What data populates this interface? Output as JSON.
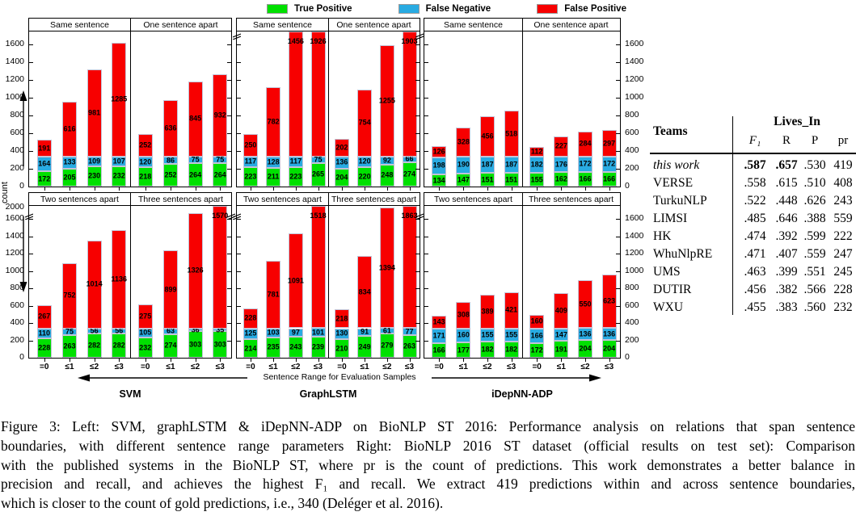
{
  "legend": {
    "items": [
      {
        "name": "true-positive",
        "label": "True Positive",
        "color": "#00e000"
      },
      {
        "name": "false-negative",
        "label": "False Negative",
        "color": "#29abe2"
      },
      {
        "name": "false-positive",
        "label": "False Positive",
        "color": "#f70000"
      }
    ]
  },
  "chart_data": {
    "type": "bar",
    "stacked": true,
    "xlabel": "Sentence Range for Evaluation Samples",
    "ylabel": "count",
    "categories": [
      "=0",
      "≤1",
      "≤2",
      "≤3"
    ],
    "series_names": [
      "True Positive",
      "False Negative",
      "False Positive"
    ],
    "colors": {
      "tp": "#00e000",
      "fn": "#29abe2",
      "fp": "#f70000"
    },
    "ylim": [
      0,
      1600
    ],
    "y_ticks": [
      0,
      200,
      400,
      600,
      800,
      1000,
      1200,
      1400,
      1600
    ],
    "y_axis_break_top_label": "2000",
    "grid": false,
    "legend_position": "top",
    "groups": [
      {
        "name": "SVM",
        "panels": [
          {
            "title": "Same sentence",
            "tp": [
              172,
              205,
              230,
              232
            ],
            "fn": [
              164,
              133,
              109,
              107
            ],
            "fp": [
              191,
              616,
              981,
              1285
            ]
          },
          {
            "title": "One sentence apart",
            "tp": [
              218,
              252,
              264,
              264
            ],
            "fn": [
              120,
              86,
              75,
              75
            ],
            "fp": [
              252,
              636,
              845,
              932
            ]
          },
          {
            "title": "Two sentences apart",
            "tp": [
              228,
              263,
              282,
              282
            ],
            "fn": [
              110,
              75,
              56,
              56
            ],
            "fp": [
              267,
              752,
              1014,
              1136
            ]
          },
          {
            "title": "Three sentences apart",
            "tp": [
              232,
              274,
              303,
              303
            ],
            "fn": [
              105,
              63,
              36,
              35
            ],
            "fp": [
              275,
              899,
              1326,
              1570
            ]
          }
        ]
      },
      {
        "name": "GraphLSTM",
        "panels": [
          {
            "title": "Same sentence",
            "tp": [
              223,
              211,
              223,
              265
            ],
            "fn": [
              117,
              128,
              117,
              75
            ],
            "fp": [
              250,
              782,
              1456,
              1926
            ]
          },
          {
            "title": "One sentence apart",
            "tp": [
              204,
              220,
              248,
              274
            ],
            "fn": [
              136,
              120,
              92,
              66
            ],
            "fp": [
              202,
              754,
              1255,
              1903
            ]
          },
          {
            "title": "Two sentences apart",
            "tp": [
              214,
              235,
              243,
              239
            ],
            "fn": [
              125,
              103,
              97,
              101
            ],
            "fp": [
              228,
              781,
              1091,
              1518
            ]
          },
          {
            "title": "Three sentences apart",
            "tp": [
              210,
              249,
              279,
              263
            ],
            "fn": [
              130,
              91,
              61,
              77
            ],
            "fp": [
              218,
              834,
              1394,
              1863
            ]
          }
        ]
      },
      {
        "name": "iDepNN-ADP",
        "panels": [
          {
            "title": "Same sentence",
            "tp": [
              134,
              147,
              151,
              151
            ],
            "fn": [
              198,
              190,
              187,
              187
            ],
            "fp": [
              126,
              328,
              456,
              518
            ]
          },
          {
            "title": "One sentence apart",
            "tp": [
              155,
              162,
              166,
              166
            ],
            "fn": [
              182,
              176,
              172,
              172
            ],
            "fp": [
              112,
              227,
              284,
              297
            ]
          },
          {
            "title": "Two sentences apart",
            "tp": [
              166,
              177,
              182,
              182
            ],
            "fn": [
              171,
              160,
              155,
              155
            ],
            "fp": [
              143,
              308,
              389,
              421
            ]
          },
          {
            "title": "Three sentences apart",
            "tp": [
              172,
              191,
              204,
              204
            ],
            "fn": [
              166,
              147,
              136,
              136
            ],
            "fp": [
              160,
              409,
              550,
              623
            ]
          }
        ]
      }
    ]
  },
  "table": {
    "teams_header": "Teams",
    "group_header": "Lives_In",
    "columns": [
      "F₁",
      "R",
      "P",
      "pr"
    ],
    "rows": [
      {
        "team": "this work",
        "italic_team": true,
        "values": [
          ".587",
          ".657",
          ".530",
          "419"
        ],
        "bold": [
          true,
          true,
          false,
          false
        ]
      },
      {
        "team": "VERSE",
        "values": [
          ".558",
          ".615",
          ".510",
          "408"
        ]
      },
      {
        "team": "TurkuNLP",
        "values": [
          ".522",
          ".448",
          ".626",
          "243"
        ]
      },
      {
        "team": "LIMSI",
        "values": [
          ".485",
          ".646",
          ".388",
          "559"
        ]
      },
      {
        "team": "HK",
        "values": [
          ".474",
          ".392",
          ".599",
          "222"
        ]
      },
      {
        "team": "WhuNlpRE",
        "values": [
          ".471",
          ".407",
          ".559",
          "247"
        ]
      },
      {
        "team": "UMS",
        "values": [
          ".463",
          ".399",
          ".551",
          "245"
        ]
      },
      {
        "team": "DUTIR",
        "values": [
          ".456",
          ".382",
          ".566",
          "228"
        ]
      },
      {
        "team": "WXU",
        "values": [
          ".455",
          ".383",
          ".560",
          "232"
        ]
      }
    ]
  },
  "caption": {
    "lines": [
      "Figure 3: Left: SVM, graphLSTM & iDepNN-ADP on BioNLP ST 2016: Performance analysis on relations that span sentence",
      "boundaries, with different sentence range parameters Right: BioNLP 2016 ST dataset (official results on test set): Comparison",
      "with the published systems in the BioNLP ST, where pr is the count of predictions. This work demonstrates a better balance in",
      "precision and recall, and achieves the highest F₁ and recall. We extract 419 predictions within and across sentence boundaries,",
      "which is closer to the count of gold predictions, i.e., 340 (Deléger et al. 2016)."
    ]
  }
}
